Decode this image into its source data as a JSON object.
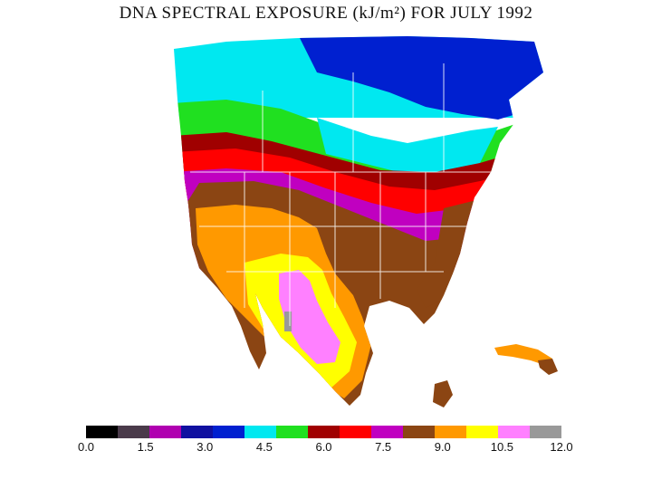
{
  "title": "DNA SPECTRAL EXPOSURE (kJ/m²) FOR JULY 1992",
  "legend": {
    "colors": [
      "#000000",
      "#4a3a4a",
      "#b000b0",
      "#1010a0",
      "#0020d0",
      "#00e8f0",
      "#20e020",
      "#a00000",
      "#ff0000",
      "#c000c0",
      "#8b4513",
      "#ff9900",
      "#ffff00",
      "#ff80ff",
      "#999999"
    ],
    "tick_labels": [
      "0.0",
      "1.5",
      "3.0",
      "4.5",
      "6.0",
      "7.5",
      "9.0",
      "10.5",
      "12.0"
    ]
  }
}
